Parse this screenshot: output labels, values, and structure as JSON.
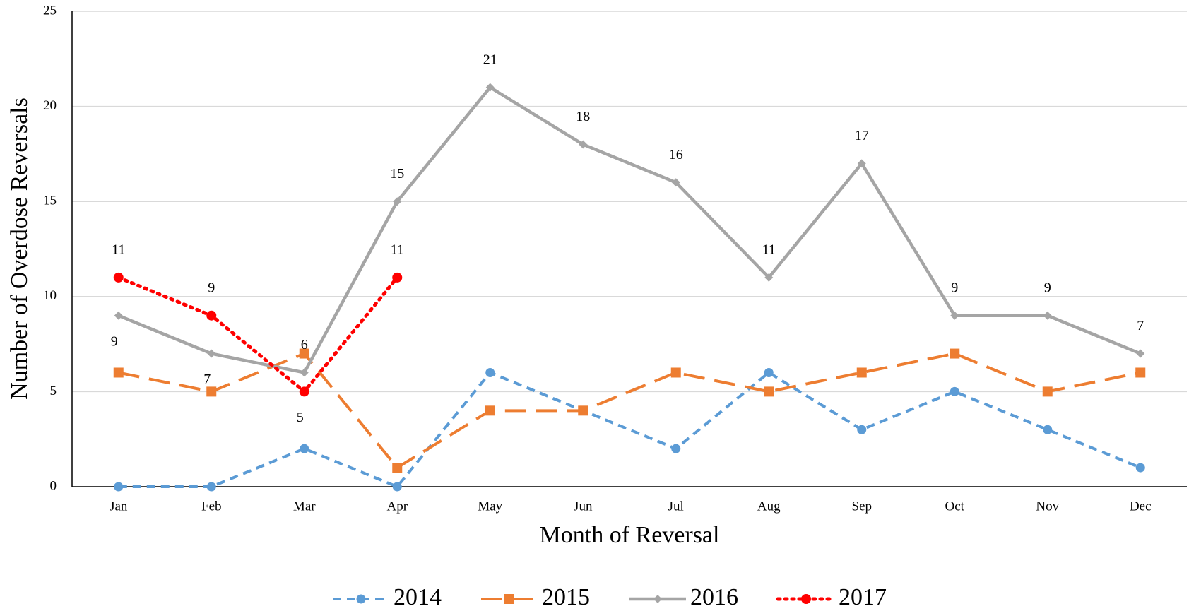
{
  "chart_data": {
    "type": "line",
    "x_label": "Month of Reversal",
    "y_label": "Number of Overdose Reversals",
    "categories": [
      "Jan",
      "Feb",
      "Mar",
      "Apr",
      "May",
      "Jun",
      "Jul",
      "Aug",
      "Sep",
      "Oct",
      "Nov",
      "Dec"
    ],
    "series": [
      {
        "name": "2014",
        "color": "#5b9bd5",
        "values": [
          0,
          0,
          2,
          0,
          6,
          4,
          2,
          6,
          3,
          5,
          3,
          1
        ]
      },
      {
        "name": "2015",
        "color": "#ed7d31",
        "values": [
          6,
          5,
          7,
          1,
          4,
          4,
          6,
          5,
          6,
          7,
          5,
          6
        ]
      },
      {
        "name": "2016",
        "color": "#a5a5a5",
        "values": [
          9,
          7,
          6,
          15,
          21,
          18,
          16,
          11,
          17,
          9,
          9,
          7
        ]
      },
      {
        "name": "2017",
        "color": "#ff0000",
        "values": [
          11,
          9,
          5,
          11,
          null,
          null,
          null,
          null,
          null,
          null,
          null,
          null
        ]
      }
    ],
    "ylim": [
      0,
      25
    ],
    "yticks": [
      0,
      5,
      10,
      15,
      20,
      25
    ],
    "grid": true,
    "legend": "bottom"
  }
}
